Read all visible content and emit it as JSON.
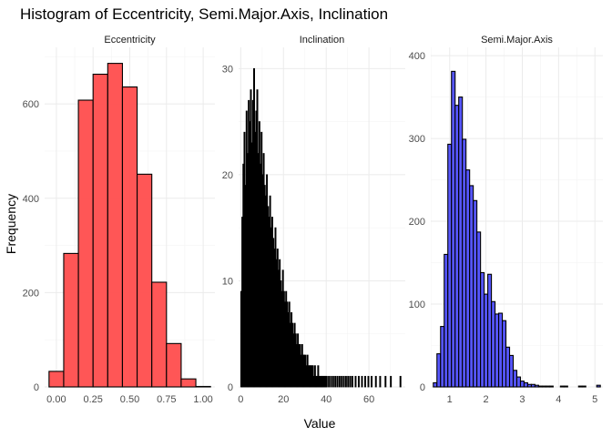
{
  "chart_data": {
    "type": "bar",
    "title": "Histogram of Eccentricity, Semi.Major.Axis, Inclination",
    "xlabel": "Value",
    "ylabel": "Frequency",
    "grid": true,
    "legend": "none",
    "facets": [
      {
        "name": "Eccentricity",
        "fill": "#ff4d4d",
        "stroke": "#000000",
        "binwidth": 0.1,
        "xlim": [
          -0.08,
          1.08
        ],
        "ylim": [
          0,
          720
        ],
        "x_ticks": [
          0,
          0.25,
          0.5,
          0.75,
          1
        ],
        "x_tick_labels": [
          "0.00",
          "0.25",
          "0.50",
          "0.75",
          "1.00"
        ],
        "y_ticks": [
          0,
          200,
          400,
          600
        ],
        "bins": [
          {
            "center": 0.0,
            "count": 33
          },
          {
            "center": 0.1,
            "count": 283
          },
          {
            "center": 0.2,
            "count": 608
          },
          {
            "center": 0.3,
            "count": 663
          },
          {
            "center": 0.4,
            "count": 686
          },
          {
            "center": 0.5,
            "count": 636
          },
          {
            "center": 0.6,
            "count": 451
          },
          {
            "center": 0.7,
            "count": 222
          },
          {
            "center": 0.8,
            "count": 92
          },
          {
            "center": 0.9,
            "count": 17
          },
          {
            "center": 1.0,
            "count": 1
          }
        ]
      },
      {
        "name": "Inclination",
        "fill": "#000000",
        "stroke": "#000000",
        "binwidth": 0.5,
        "xlim": [
          -1,
          77
        ],
        "ylim": [
          0,
          32
        ],
        "x_ticks": [
          0,
          20,
          40,
          60
        ],
        "x_tick_labels": [
          "0",
          "20",
          "40",
          "60"
        ],
        "y_ticks": [
          0,
          10,
          20,
          30
        ],
        "bins": [
          {
            "center": 0.25,
            "count": 9
          },
          {
            "center": 0.75,
            "count": 16
          },
          {
            "center": 1.25,
            "count": 21
          },
          {
            "center": 1.75,
            "count": 24
          },
          {
            "center": 2.25,
            "count": 19
          },
          {
            "center": 2.75,
            "count": 26
          },
          {
            "center": 3.25,
            "count": 22
          },
          {
            "center": 3.75,
            "count": 27
          },
          {
            "center": 4.25,
            "count": 25
          },
          {
            "center": 4.75,
            "count": 28
          },
          {
            "center": 5.25,
            "count": 23
          },
          {
            "center": 5.75,
            "count": 27
          },
          {
            "center": 6.25,
            "count": 30
          },
          {
            "center": 6.75,
            "count": 24
          },
          {
            "center": 7.25,
            "count": 26
          },
          {
            "center": 7.75,
            "count": 28
          },
          {
            "center": 8.25,
            "count": 22
          },
          {
            "center": 8.75,
            "count": 25
          },
          {
            "center": 9.25,
            "count": 21
          },
          {
            "center": 9.75,
            "count": 24
          },
          {
            "center": 10.25,
            "count": 20
          },
          {
            "center": 10.75,
            "count": 22
          },
          {
            "center": 11.25,
            "count": 19
          },
          {
            "center": 11.75,
            "count": 18
          },
          {
            "center": 12.25,
            "count": 20
          },
          {
            "center": 12.75,
            "count": 17
          },
          {
            "center": 13.25,
            "count": 16
          },
          {
            "center": 13.75,
            "count": 18
          },
          {
            "center": 14.25,
            "count": 15
          },
          {
            "center": 14.75,
            "count": 16
          },
          {
            "center": 15.25,
            "count": 14
          },
          {
            "center": 15.75,
            "count": 13
          },
          {
            "center": 16.25,
            "count": 15
          },
          {
            "center": 16.75,
            "count": 12
          },
          {
            "center": 17.25,
            "count": 13
          },
          {
            "center": 17.75,
            "count": 11
          },
          {
            "center": 18.25,
            "count": 12
          },
          {
            "center": 18.75,
            "count": 10
          },
          {
            "center": 19.25,
            "count": 9
          },
          {
            "center": 19.75,
            "count": 11
          },
          {
            "center": 20.25,
            "count": 9
          },
          {
            "center": 20.75,
            "count": 8
          },
          {
            "center": 21.25,
            "count": 9
          },
          {
            "center": 21.75,
            "count": 8
          },
          {
            "center": 22.25,
            "count": 7
          },
          {
            "center": 22.75,
            "count": 8
          },
          {
            "center": 23.25,
            "count": 6
          },
          {
            "center": 23.75,
            "count": 7
          },
          {
            "center": 24.25,
            "count": 6
          },
          {
            "center": 24.75,
            "count": 5
          },
          {
            "center": 25.25,
            "count": 6
          },
          {
            "center": 25.75,
            "count": 5
          },
          {
            "center": 26.25,
            "count": 4
          },
          {
            "center": 26.75,
            "count": 5
          },
          {
            "center": 27.25,
            "count": 4
          },
          {
            "center": 27.75,
            "count": 4
          },
          {
            "center": 28.25,
            "count": 3
          },
          {
            "center": 28.75,
            "count": 4
          },
          {
            "center": 29.25,
            "count": 3
          },
          {
            "center": 29.75,
            "count": 3
          },
          {
            "center": 30.25,
            "count": 3
          },
          {
            "center": 30.75,
            "count": 2
          },
          {
            "center": 31.25,
            "count": 3
          },
          {
            "center": 31.75,
            "count": 2
          },
          {
            "center": 32.25,
            "count": 2
          },
          {
            "center": 32.75,
            "count": 2
          },
          {
            "center": 33.25,
            "count": 2
          },
          {
            "center": 33.75,
            "count": 2
          },
          {
            "center": 34.25,
            "count": 1
          },
          {
            "center": 34.75,
            "count": 2
          },
          {
            "center": 35.25,
            "count": 1
          },
          {
            "center": 35.75,
            "count": 1
          },
          {
            "center": 36.25,
            "count": 2
          },
          {
            "center": 36.75,
            "count": 1
          },
          {
            "center": 37.25,
            "count": 1
          },
          {
            "center": 37.75,
            "count": 1
          },
          {
            "center": 38.25,
            "count": 1
          },
          {
            "center": 38.75,
            "count": 1
          },
          {
            "center": 39.25,
            "count": 1
          },
          {
            "center": 39.75,
            "count": 1
          },
          {
            "center": 40.25,
            "count": 1
          },
          {
            "center": 41.25,
            "count": 1
          },
          {
            "center": 42.25,
            "count": 1
          },
          {
            "center": 43.25,
            "count": 1
          },
          {
            "center": 44.25,
            "count": 1
          },
          {
            "center": 45.25,
            "count": 1
          },
          {
            "center": 46.25,
            "count": 1
          },
          {
            "center": 47.25,
            "count": 1
          },
          {
            "center": 48.25,
            "count": 1
          },
          {
            "center": 49.25,
            "count": 1
          },
          {
            "center": 50.25,
            "count": 1
          },
          {
            "center": 51.25,
            "count": 1
          },
          {
            "center": 52.25,
            "count": 1
          },
          {
            "center": 53.75,
            "count": 1
          },
          {
            "center": 55.25,
            "count": 1
          },
          {
            "center": 56.75,
            "count": 1
          },
          {
            "center": 58.25,
            "count": 1
          },
          {
            "center": 59.75,
            "count": 1
          },
          {
            "center": 61.25,
            "count": 1
          },
          {
            "center": 63.25,
            "count": 1
          },
          {
            "center": 65.25,
            "count": 1
          },
          {
            "center": 67.75,
            "count": 1
          },
          {
            "center": 70.25,
            "count": 1
          },
          {
            "center": 74.75,
            "count": 1
          }
        ]
      },
      {
        "name": "Semi.Major.Axis",
        "fill": "#4d4dff",
        "stroke": "#000000",
        "binwidth": 0.1,
        "xlim": [
          0.48,
          5.22
        ],
        "ylim": [
          0,
          410
        ],
        "x_ticks": [
          1,
          2,
          3,
          4,
          5
        ],
        "x_tick_labels": [
          "1",
          "2",
          "3",
          "4",
          "5"
        ],
        "y_ticks": [
          0,
          100,
          200,
          300,
          400
        ],
        "bins": [
          {
            "center": 0.6,
            "count": 5
          },
          {
            "center": 0.7,
            "count": 40
          },
          {
            "center": 0.8,
            "count": 73
          },
          {
            "center": 0.9,
            "count": 160
          },
          {
            "center": 1.0,
            "count": 293
          },
          {
            "center": 1.1,
            "count": 381
          },
          {
            "center": 1.2,
            "count": 340
          },
          {
            "center": 1.3,
            "count": 350
          },
          {
            "center": 1.4,
            "count": 299
          },
          {
            "center": 1.5,
            "count": 262
          },
          {
            "center": 1.6,
            "count": 243
          },
          {
            "center": 1.7,
            "count": 225
          },
          {
            "center": 1.8,
            "count": 187
          },
          {
            "center": 1.9,
            "count": 138
          },
          {
            "center": 2.0,
            "count": 112
          },
          {
            "center": 2.1,
            "count": 136
          },
          {
            "center": 2.2,
            "count": 103
          },
          {
            "center": 2.3,
            "count": 88
          },
          {
            "center": 2.4,
            "count": 89
          },
          {
            "center": 2.5,
            "count": 80
          },
          {
            "center": 2.6,
            "count": 48
          },
          {
            "center": 2.7,
            "count": 38
          },
          {
            "center": 2.8,
            "count": 20
          },
          {
            "center": 2.9,
            "count": 12
          },
          {
            "center": 3.0,
            "count": 7
          },
          {
            "center": 3.1,
            "count": 5
          },
          {
            "center": 3.2,
            "count": 3
          },
          {
            "center": 3.3,
            "count": 3
          },
          {
            "center": 3.4,
            "count": 2
          },
          {
            "center": 3.5,
            "count": 1
          },
          {
            "center": 3.6,
            "count": 1
          },
          {
            "center": 3.7,
            "count": 1
          },
          {
            "center": 3.8,
            "count": 1
          },
          {
            "center": 4.1,
            "count": 1
          },
          {
            "center": 4.2,
            "count": 1
          },
          {
            "center": 4.6,
            "count": 1
          },
          {
            "center": 4.7,
            "count": 1
          },
          {
            "center": 5.1,
            "count": 2
          }
        ]
      }
    ]
  }
}
